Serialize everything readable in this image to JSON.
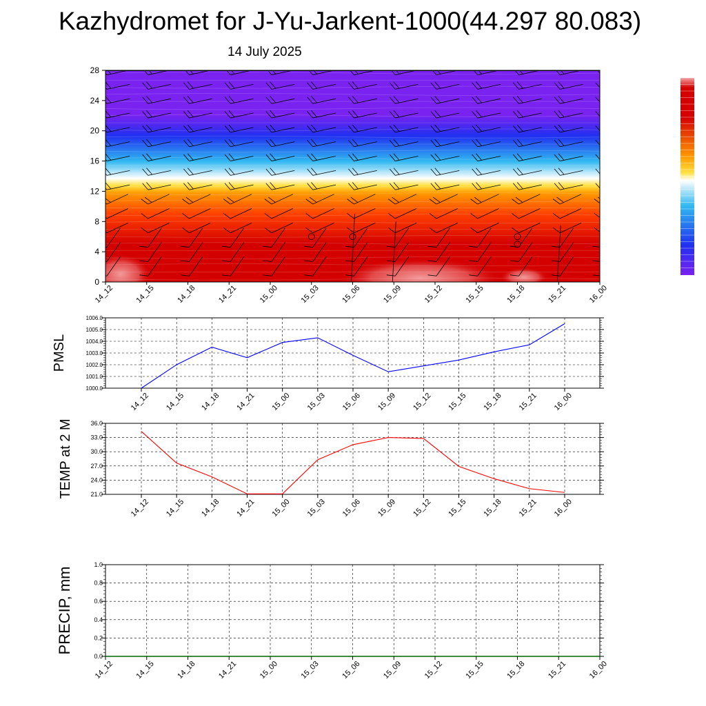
{
  "header": {
    "title": "Kazhydromet for J-Yu-Jarkent-1000(44.297 80.083)",
    "date": "14 July 2025"
  },
  "chart_data": [
    {
      "type": "heatmap",
      "name": "cross-section",
      "x_tick_labels": [
        "14_12",
        "14_15",
        "14_18",
        "14_21",
        "15_00",
        "15_03",
        "15_06",
        "15_09",
        "15_12",
        "15_15",
        "15_18",
        "15_21",
        "16_00"
      ],
      "y_ticks": [
        0,
        4,
        8,
        12,
        16,
        20,
        24,
        28
      ],
      "ylim": [
        0,
        28
      ],
      "colors": {
        "hot": "#d40000",
        "warm": "#ff4000",
        "orange": "#ff9a00",
        "yellow": "#ffe040",
        "white": "#ffffff",
        "cyan": "#30b8f0",
        "blue": "#2030f0",
        "purple": "#7a22f0",
        "light_spot": "#f4a0a0"
      },
      "marker_symbol": "o"
    },
    {
      "type": "line",
      "name": "pmsl",
      "ylabel": "PMSL",
      "ylim": [
        1000.0,
        1006.0
      ],
      "y_tick_labels": [
        "1000.0",
        "1001.0",
        "1002.0",
        "1003.0",
        "1004.0",
        "1005.0",
        "1006.0"
      ],
      "x": [
        "14_12",
        "14_15",
        "14_18",
        "14_21",
        "15_00",
        "15_03",
        "15_06",
        "15_09",
        "15_12",
        "15_15",
        "15_18",
        "15_21",
        "16_00"
      ],
      "values": [
        1000.0,
        1002.0,
        1003.5,
        1002.6,
        1003.9,
        1004.3,
        1002.8,
        1001.4,
        1001.9,
        1002.4,
        1003.1,
        1003.7,
        1005.5
      ],
      "color": "#0000ff"
    },
    {
      "type": "line",
      "name": "temp",
      "ylabel": "TEMP at 2 M",
      "ylim": [
        21.0,
        36.0
      ],
      "y_tick_labels": [
        "21.0",
        "24.0",
        "27.0",
        "30.0",
        "33.0",
        "36.0"
      ],
      "x": [
        "14_12",
        "14_15",
        "14_18",
        "14_21",
        "15_00",
        "15_03",
        "15_06",
        "15_09",
        "15_12",
        "15_15",
        "15_18",
        "15_21",
        "16_00"
      ],
      "values": [
        34.3,
        27.6,
        24.7,
        21.1,
        21.1,
        28.3,
        31.5,
        33.0,
        32.8,
        26.9,
        24.3,
        22.2,
        21.4
      ],
      "color": "#ff0000"
    },
    {
      "type": "bar",
      "name": "precip",
      "ylabel": "PRECIP, mm",
      "ylim": [
        0.0,
        1.0
      ],
      "y_tick_labels": [
        "0.0",
        "0.2",
        "0.4",
        "0.6",
        "0.8",
        "1.0"
      ],
      "x_tick_labels": [
        "14_12",
        "14_15",
        "14_18",
        "14_21",
        "15_00",
        "15_03",
        "15_06",
        "15_09",
        "15_12",
        "15_15",
        "15_18",
        "15_21",
        "16_00"
      ],
      "values": [
        0,
        0,
        0,
        0,
        0,
        0,
        0,
        0,
        0,
        0,
        0,
        0,
        0
      ],
      "color": "#006400"
    }
  ]
}
